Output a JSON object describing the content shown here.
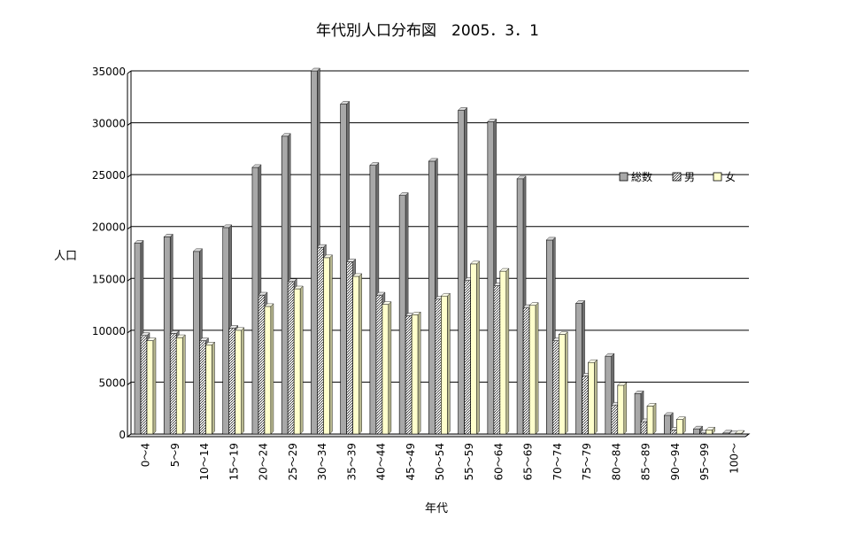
{
  "chart_data": {
    "type": "bar",
    "title": "年代別人口分布図　2005．3．1",
    "xlabel": "年代",
    "ylabel": "人口",
    "ylim": [
      0,
      35000
    ],
    "yticks": [
      0,
      5000,
      10000,
      15000,
      20000,
      25000,
      30000,
      35000
    ],
    "grid": true,
    "legend_position": "right",
    "categories": [
      "0～4",
      "5～9",
      "10～14",
      "15～19",
      "20～24",
      "25～29",
      "30～34",
      "35～39",
      "40～44",
      "45～49",
      "50～54",
      "55～59",
      "60～64",
      "65～69",
      "70～74",
      "75～79",
      "80～84",
      "85～89",
      "90～94",
      "95～99",
      "100～"
    ],
    "series": [
      {
        "name": "総数",
        "color": "#a8a8a8",
        "values": [
          18400,
          19000,
          17600,
          19900,
          25700,
          28700,
          35000,
          31800,
          25900,
          23000,
          26300,
          31200,
          30100,
          24600,
          18700,
          12600,
          7500,
          3900,
          1800,
          500,
          100
        ]
      },
      {
        "name": "男",
        "color": "#c8c8c8",
        "values": [
          9500,
          9700,
          9000,
          10200,
          13400,
          14700,
          18000,
          16600,
          13400,
          11400,
          13000,
          14800,
          14300,
          12200,
          9000,
          5600,
          2800,
          1200,
          400,
          100,
          20
        ]
      },
      {
        "name": "女",
        "color": "#ffffcc",
        "values": [
          9000,
          9300,
          8600,
          10000,
          12300,
          14000,
          17000,
          15200,
          12500,
          11500,
          13300,
          16400,
          15700,
          12400,
          9600,
          6900,
          4700,
          2700,
          1400,
          400,
          80
        ]
      }
    ]
  }
}
